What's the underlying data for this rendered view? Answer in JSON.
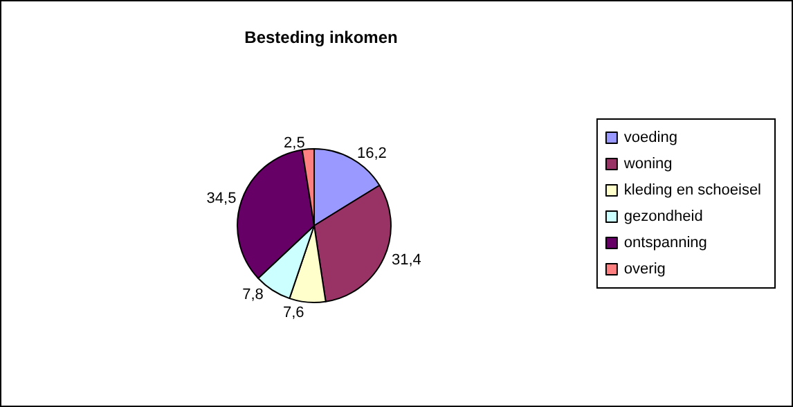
{
  "chart_data": {
    "type": "pie",
    "title": "Besteding inkomen",
    "categories": [
      "voeding",
      "woning",
      "kleding en schoeisel",
      "gezondheid",
      "ontspanning",
      "overig"
    ],
    "values": [
      16.2,
      31.4,
      7.6,
      7.8,
      34.5,
      2.5
    ],
    "value_labels": [
      "16,2",
      "31,4",
      "7,6",
      "7,8",
      "34,5",
      "2,5"
    ],
    "colors": [
      "#9999ff",
      "#993366",
      "#ffffcc",
      "#ccffff",
      "#660066",
      "#ff8080"
    ],
    "legend": "right"
  }
}
